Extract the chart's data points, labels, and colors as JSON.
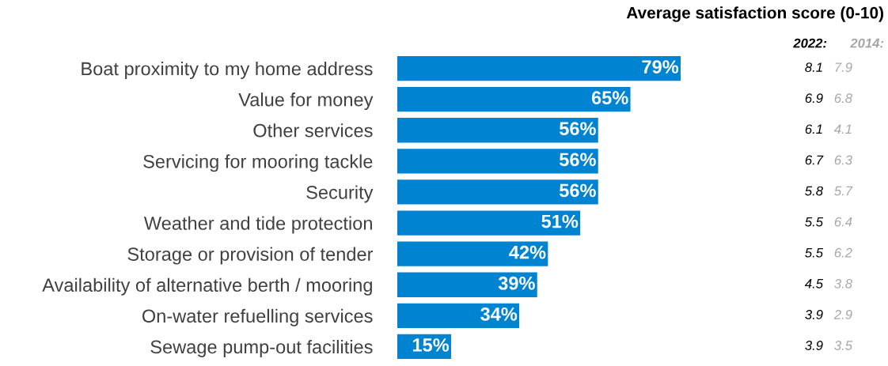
{
  "chart_data": {
    "type": "bar",
    "orientation": "horizontal",
    "categories": [
      "Boat proximity to my home address",
      "Value for money",
      "Other services",
      "Servicing for mooring tackle",
      "Security",
      "Weather and tide protection",
      "Storage or provision of tender",
      "Availability of alternative berth / mooring",
      "On-water refuelling services",
      "Sewage pump-out facilities"
    ],
    "values": [
      79,
      65,
      56,
      56,
      56,
      51,
      42,
      39,
      34,
      15
    ],
    "value_labels": [
      "79%",
      "65%",
      "56%",
      "56%",
      "56%",
      "51%",
      "42%",
      "39%",
      "34%",
      "15%"
    ],
    "color": "#0084d1",
    "annotations": [
      "Average satisfaction score (0-10)",
      "2022:",
      "2014:",
      "8.1",
      "7.9",
      "6.9",
      "6.8",
      "6.1",
      "4.1",
      "6.7",
      "6.3",
      "5.8",
      "5.7",
      "5.5",
      "6.4",
      "5.5",
      "6.2",
      "4.5",
      "3.8",
      "3.9",
      "2.9",
      "3.9",
      "3.5"
    ],
    "grid": false,
    "legend": false
  }
}
